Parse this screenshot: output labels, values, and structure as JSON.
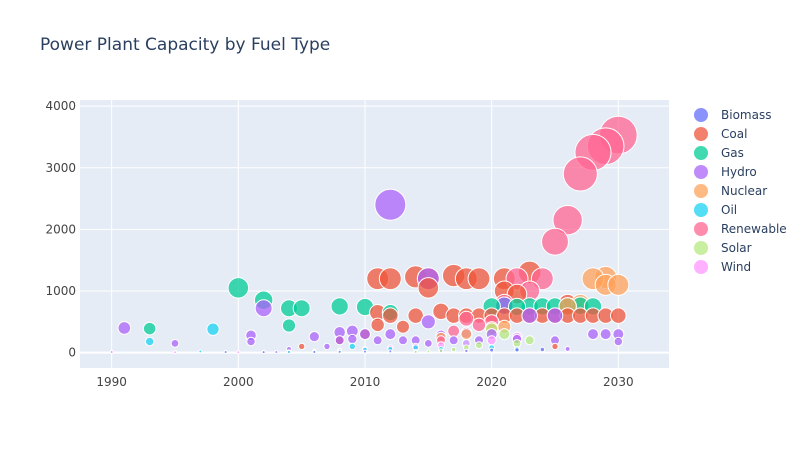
{
  "chart_data": {
    "type": "scatter",
    "title": "Power Plant Capacity by Fuel Type",
    "xlabel": "",
    "ylabel": "",
    "xlim": [
      1987.5,
      2034
    ],
    "ylim": [
      -250,
      4100
    ],
    "x_ticks": [
      1990,
      2000,
      2010,
      2020,
      2030
    ],
    "y_ticks": [
      0,
      1000,
      2000,
      3000,
      4000
    ],
    "grid": true,
    "legend_position": "right",
    "series": [
      {
        "name": "Biomass",
        "color": "#636efa",
        "points": [
          [
            1999,
            10
          ],
          [
            2002,
            8
          ],
          [
            2004,
            12
          ],
          [
            2006,
            10
          ],
          [
            2008,
            12
          ],
          [
            2010,
            15
          ],
          [
            2012,
            20
          ],
          [
            2014,
            25
          ],
          [
            2016,
            30
          ],
          [
            2018,
            28
          ],
          [
            2020,
            40
          ],
          [
            2022,
            45
          ],
          [
            2024,
            50
          ]
        ]
      },
      {
        "name": "Coal",
        "color": "#ef553b",
        "points": [
          [
            2005,
            100
          ],
          [
            2008,
            200
          ],
          [
            2010,
            300
          ],
          [
            2011,
            450
          ],
          [
            2011,
            1200
          ],
          [
            2011,
            650
          ],
          [
            2012,
            1200
          ],
          [
            2012,
            600
          ],
          [
            2013,
            420
          ],
          [
            2014,
            1230
          ],
          [
            2014,
            600
          ],
          [
            2015,
            1050
          ],
          [
            2015,
            1200
          ],
          [
            2016,
            670
          ],
          [
            2017,
            1250
          ],
          [
            2017,
            600
          ],
          [
            2018,
            1200
          ],
          [
            2018,
            600
          ],
          [
            2019,
            1200
          ],
          [
            2019,
            600
          ],
          [
            2020,
            600
          ],
          [
            2021,
            1200
          ],
          [
            2021,
            600
          ],
          [
            2021,
            1000
          ],
          [
            2022,
            950
          ],
          [
            2022,
            600
          ],
          [
            2023,
            1300
          ],
          [
            2023,
            600
          ],
          [
            2024,
            600
          ],
          [
            2025,
            600
          ],
          [
            2026,
            600
          ],
          [
            2026,
            800
          ],
          [
            2027,
            600
          ],
          [
            2028,
            600
          ],
          [
            2029,
            600
          ],
          [
            2030,
            600
          ],
          [
            2025,
            100
          ]
        ]
      },
      {
        "name": "Gas",
        "color": "#00cc96",
        "points": [
          [
            1993,
            390
          ],
          [
            2000,
            1050
          ],
          [
            2002,
            850
          ],
          [
            2004,
            720
          ],
          [
            2004,
            440
          ],
          [
            2005,
            720
          ],
          [
            2008,
            750
          ],
          [
            2010,
            740
          ],
          [
            2012,
            650
          ],
          [
            2020,
            750
          ],
          [
            2021,
            760
          ],
          [
            2022,
            740
          ],
          [
            2023,
            750
          ],
          [
            2024,
            750
          ],
          [
            2025,
            750
          ],
          [
            2026,
            750
          ],
          [
            2027,
            760
          ],
          [
            2028,
            750
          ]
        ]
      },
      {
        "name": "Hydro",
        "color": "#ab63fa",
        "points": [
          [
            1990,
            10
          ],
          [
            1991,
            400
          ],
          [
            1995,
            150
          ],
          [
            2001,
            280
          ],
          [
            2001,
            180
          ],
          [
            2002,
            720
          ],
          [
            2003,
            10
          ],
          [
            2004,
            60
          ],
          [
            2006,
            260
          ],
          [
            2007,
            100
          ],
          [
            2008,
            330
          ],
          [
            2008,
            200
          ],
          [
            2009,
            350
          ],
          [
            2009,
            220
          ],
          [
            2010,
            300
          ],
          [
            2011,
            200
          ],
          [
            2012,
            2400
          ],
          [
            2012,
            300
          ],
          [
            2013,
            200
          ],
          [
            2014,
            200
          ],
          [
            2015,
            1200
          ],
          [
            2015,
            500
          ],
          [
            2015,
            150
          ],
          [
            2016,
            280
          ],
          [
            2017,
            200
          ],
          [
            2018,
            320
          ],
          [
            2019,
            200
          ],
          [
            2020,
            300
          ],
          [
            2021,
            760
          ],
          [
            2022,
            220
          ],
          [
            2023,
            600
          ],
          [
            2025,
            600
          ],
          [
            2025,
            200
          ],
          [
            2026,
            60
          ],
          [
            2028,
            300
          ],
          [
            2029,
            300
          ],
          [
            2030,
            300
          ],
          [
            2030,
            180
          ]
        ]
      },
      {
        "name": "Nuclear",
        "color": "#ffa15a",
        "points": [
          [
            2016,
            250
          ],
          [
            2018,
            300
          ],
          [
            2020,
            400
          ],
          [
            2021,
            420
          ],
          [
            2026,
            750
          ],
          [
            2027,
            800
          ],
          [
            2028,
            1200
          ],
          [
            2029,
            1220
          ],
          [
            2029,
            1100
          ],
          [
            2030,
            1100
          ]
        ]
      },
      {
        "name": "Oil",
        "color": "#19d3f3",
        "points": [
          [
            1993,
            180
          ],
          [
            1997,
            20
          ],
          [
            1998,
            380
          ],
          [
            2004,
            10
          ],
          [
            2006,
            20
          ],
          [
            2008,
            30
          ],
          [
            2009,
            100
          ],
          [
            2010,
            50
          ],
          [
            2012,
            60
          ],
          [
            2014,
            80
          ],
          [
            2016,
            60
          ],
          [
            2018,
            150
          ],
          [
            2020,
            80
          ],
          [
            2022,
            60
          ]
        ]
      },
      {
        "name": "Renewable",
        "color": "#ff6692",
        "points": [
          [
            2016,
            200
          ],
          [
            2017,
            350
          ],
          [
            2018,
            550
          ],
          [
            2019,
            450
          ],
          [
            2020,
            500
          ],
          [
            2021,
            800
          ],
          [
            2022,
            1200
          ],
          [
            2023,
            1000
          ],
          [
            2024,
            1200
          ],
          [
            2025,
            1800
          ],
          [
            2026,
            2150
          ],
          [
            2027,
            2900
          ],
          [
            2028,
            3250
          ],
          [
            2029,
            3350
          ],
          [
            2030,
            3530
          ]
        ]
      },
      {
        "name": "Solar",
        "color": "#b6e880",
        "points": [
          [
            2014,
            10
          ],
          [
            2015,
            20
          ],
          [
            2016,
            30
          ],
          [
            2017,
            50
          ],
          [
            2018,
            80
          ],
          [
            2019,
            120
          ],
          [
            2020,
            380
          ],
          [
            2021,
            300
          ],
          [
            2022,
            150
          ],
          [
            2023,
            200
          ]
        ]
      },
      {
        "name": "Wind",
        "color": "#ff97ff",
        "points": [
          [
            1990,
            10
          ],
          [
            1995,
            5
          ],
          [
            2000,
            5
          ],
          [
            2002,
            10
          ],
          [
            2004,
            20
          ],
          [
            2006,
            30
          ],
          [
            2008,
            40
          ],
          [
            2010,
            60
          ],
          [
            2012,
            80
          ],
          [
            2014,
            100
          ],
          [
            2016,
            120
          ],
          [
            2018,
            150
          ],
          [
            2020,
            200
          ],
          [
            2022,
            250
          ]
        ]
      }
    ]
  }
}
